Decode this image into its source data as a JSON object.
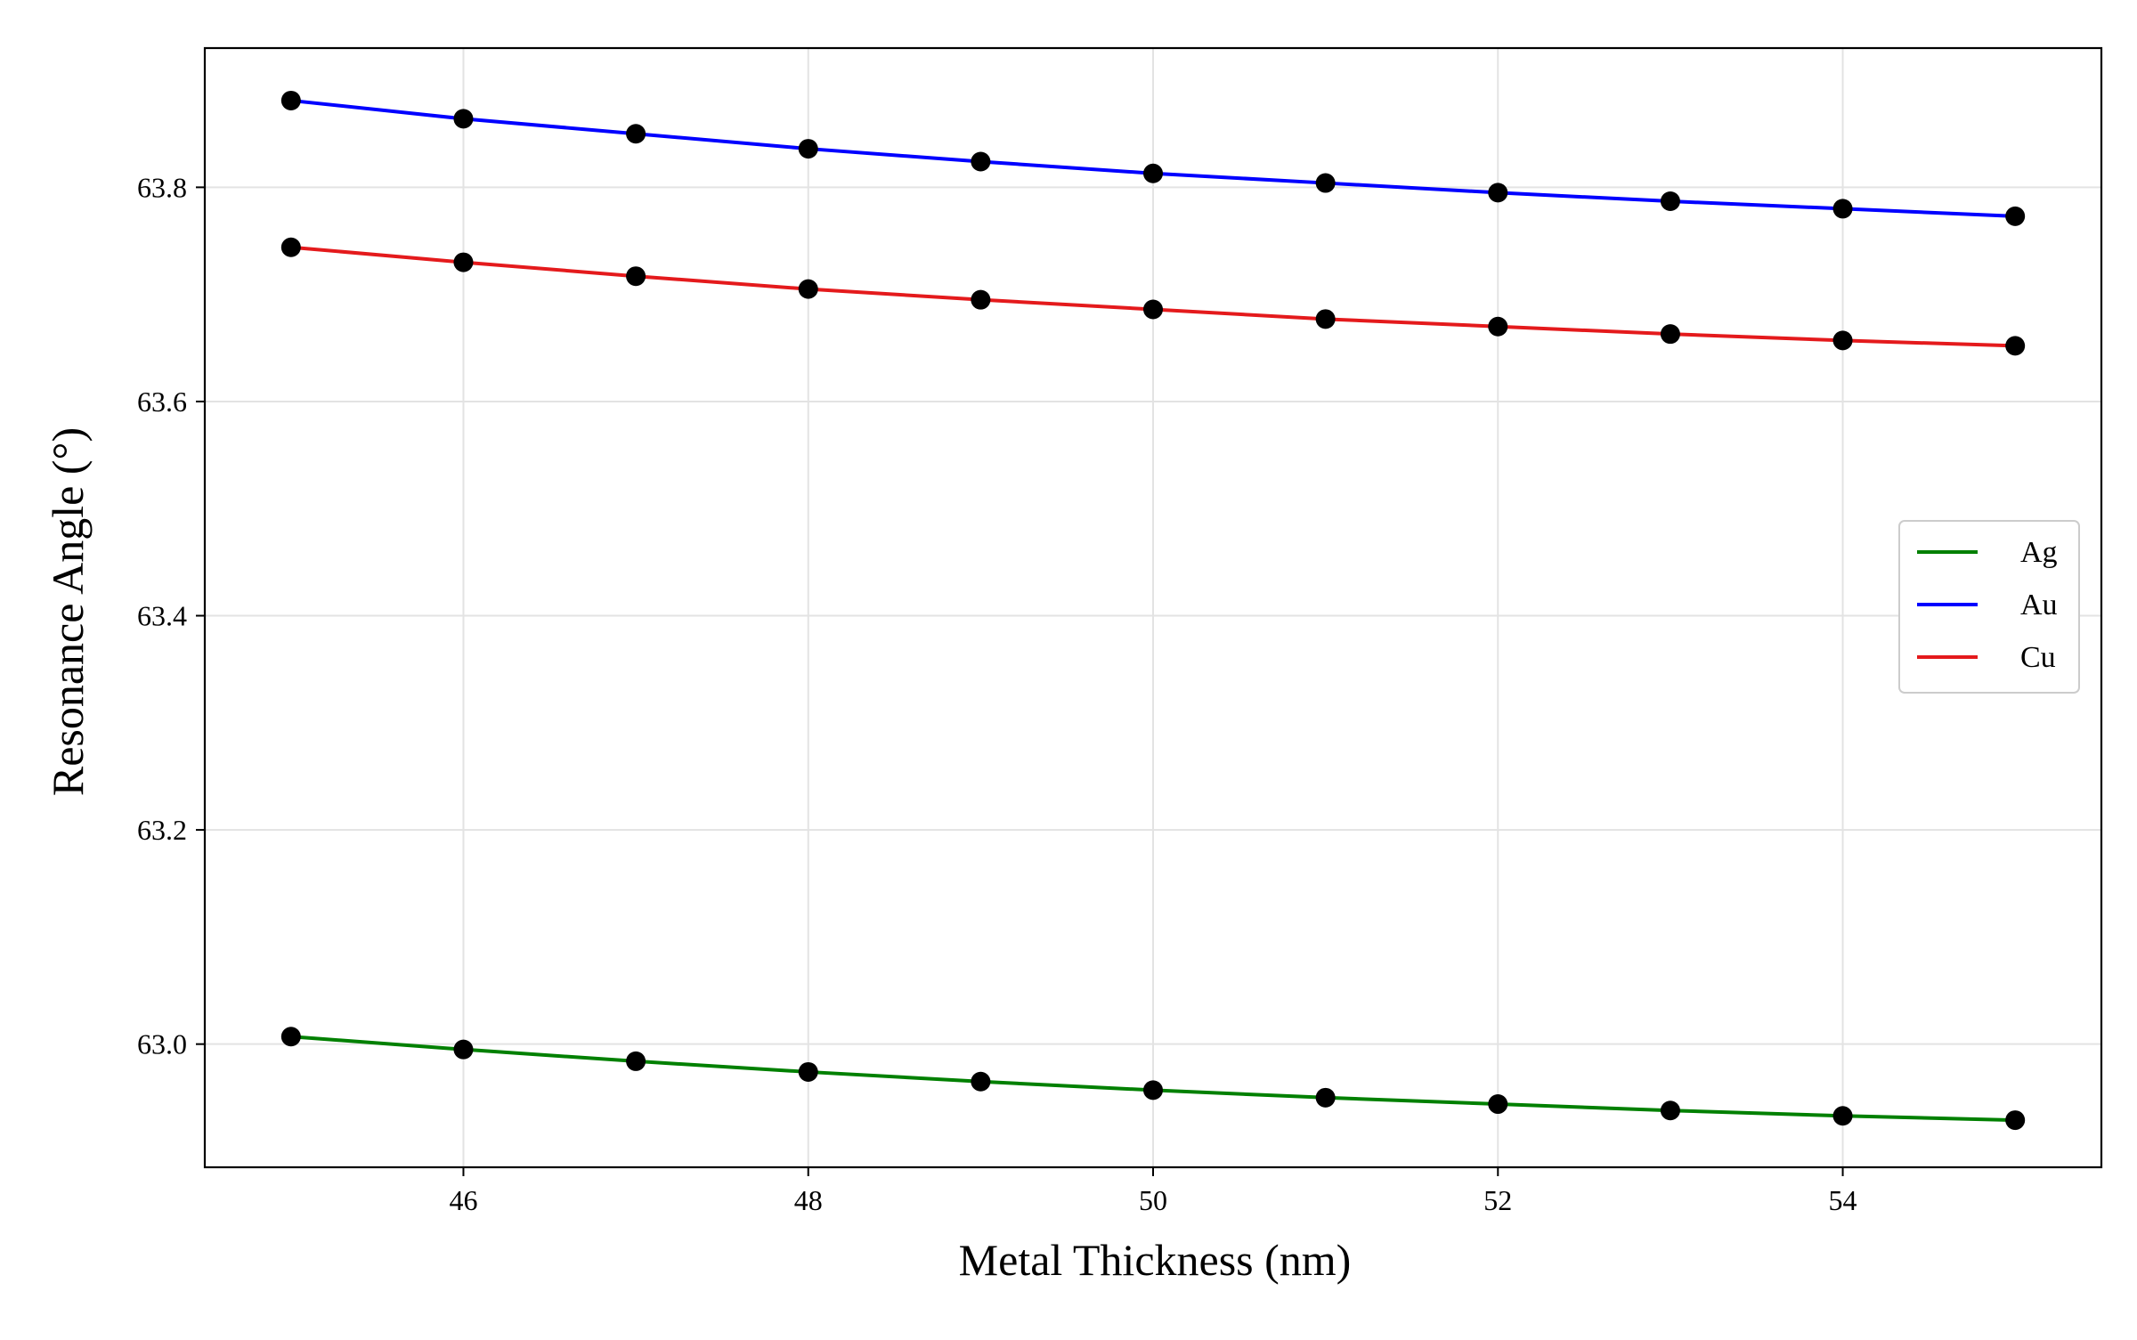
{
  "chart_data": {
    "type": "line",
    "title": "",
    "xlabel": "Metal Thickness (nm)",
    "ylabel": "Resonance Angle (°)",
    "xlim": [
      44.5,
      55.5
    ],
    "ylim": [
      62.885,
      63.93
    ],
    "xticks": [
      46,
      48,
      50,
      52,
      54
    ],
    "yticks": [
      63.0,
      63.2,
      63.4,
      63.6,
      63.8
    ],
    "xtick_labels": [
      "46",
      "48",
      "50",
      "52",
      "54"
    ],
    "ytick_labels": [
      "63.0",
      "63.2",
      "63.4",
      "63.6",
      "63.8"
    ],
    "grid": true,
    "legend_position": "center-right",
    "x": [
      45,
      46,
      47,
      48,
      49,
      50,
      51,
      52,
      53,
      54,
      55
    ],
    "series": [
      {
        "name": "Ag",
        "color": "#008000",
        "values": [
          63.007,
          62.995,
          62.984,
          62.974,
          62.965,
          62.957,
          62.95,
          62.944,
          62.938,
          62.933,
          62.929
        ]
      },
      {
        "name": "Au",
        "color": "#0000ff",
        "values": [
          63.881,
          63.864,
          63.85,
          63.836,
          63.824,
          63.813,
          63.804,
          63.795,
          63.787,
          63.78,
          63.773
        ]
      },
      {
        "name": "Cu",
        "color": "#e41a1c",
        "values": [
          63.744,
          63.73,
          63.717,
          63.705,
          63.695,
          63.686,
          63.677,
          63.67,
          63.663,
          63.657,
          63.652
        ]
      }
    ],
    "marker_color": "#000000"
  }
}
